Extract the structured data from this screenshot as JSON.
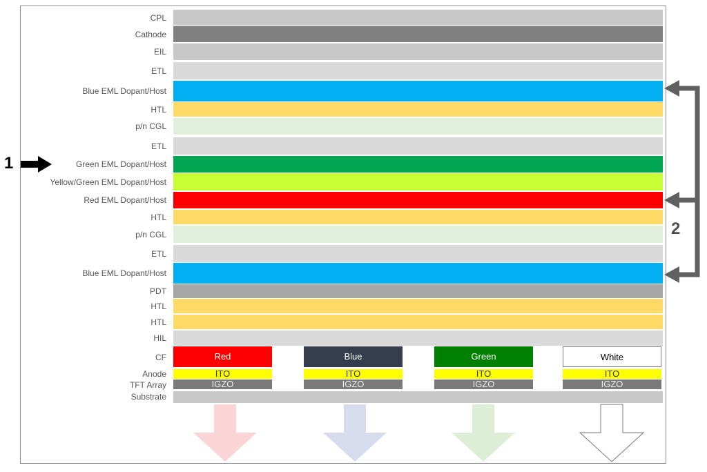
{
  "layers": [
    {
      "label": "CPL",
      "color": "#c8c8c8"
    },
    {
      "label": "Cathode",
      "color": "#808080"
    },
    {
      "label": "EIL",
      "color": "#c8c8c8"
    },
    {
      "label": "ETL",
      "color": "#d9d9d9"
    },
    {
      "label": "Blue EML Dopant/Host",
      "color": "#00b0f0"
    },
    {
      "label": "HTL",
      "color": "#ffd966"
    },
    {
      "label": "p/n CGL",
      "color": "#e2efda"
    },
    {
      "label": "ETL",
      "color": "#d9d9d9"
    },
    {
      "label": "Green EML Dopant/Host",
      "color": "#00a651"
    },
    {
      "label": "Yellow/Green EML Dopant/Host",
      "color": "#c6ff33"
    },
    {
      "label": "Red EML Dopant/Host",
      "color": "#ff0000"
    },
    {
      "label": "HTL",
      "color": "#ffd966"
    },
    {
      "label": "p/n CGL",
      "color": "#e2efda"
    },
    {
      "label": "ETL",
      "color": "#d9d9d9"
    },
    {
      "label": "Blue EML Dopant/Host",
      "color": "#00b0f0"
    },
    {
      "label": "PDT",
      "color": "#a6a6a6"
    },
    {
      "label": "HTL",
      "color": "#ffd966"
    },
    {
      "label": "HTL",
      "color": "#ffd966"
    },
    {
      "label": "HIL",
      "color": "#d9d9d9"
    }
  ],
  "bottom_labels": {
    "cf": "CF",
    "anode": "Anode",
    "tft": "TFT Array",
    "substrate": "Substrate"
  },
  "pixels": [
    {
      "cf": "Red",
      "cf_color": "#ff0000",
      "cf_text_color": "#ffffff",
      "ito": "ITO",
      "igzo": "IGZO",
      "arrow_color": "#fbd5d5"
    },
    {
      "cf": "Blue",
      "cf_color": "#333d4d",
      "cf_text_color": "#ffffff",
      "ito": "ITO",
      "igzo": "IGZO",
      "arrow_color": "#d6dbee"
    },
    {
      "cf": "Green",
      "cf_color": "#008000",
      "cf_text_color": "#ffffff",
      "ito": "ITO",
      "igzo": "IGZO",
      "arrow_color": "#dcefd6"
    },
    {
      "cf": "White",
      "cf_color": "#ffffff",
      "cf_text_color": "#000000",
      "ito": "ITO",
      "igzo": "IGZO",
      "arrow_color": "#ffffff"
    }
  ],
  "annotations": {
    "marker_1": "1",
    "marker_2": "2"
  },
  "colors": {
    "ito": "#ffff00",
    "igzo": "#7a7a7a",
    "substrate": "#c8c8c8",
    "bracket": "#606060"
  }
}
